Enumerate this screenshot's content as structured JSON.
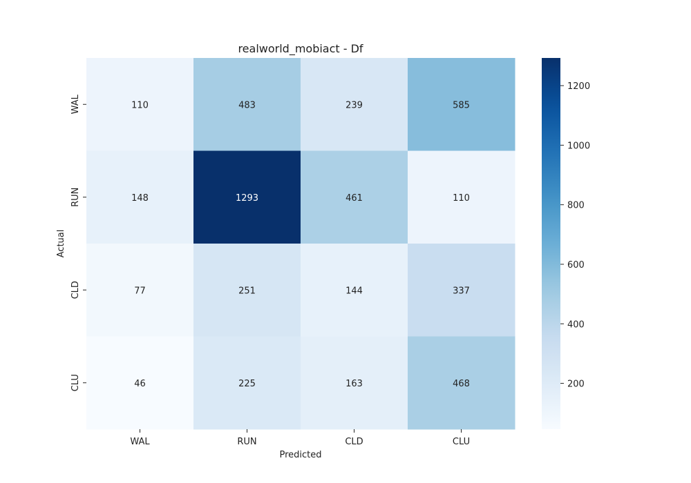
{
  "chart_data": {
    "type": "heatmap",
    "title": "realworld_mobiact - Df",
    "xlabel": "Predicted",
    "ylabel": "Actual",
    "x_categories": [
      "WAL",
      "RUN",
      "CLD",
      "CLU"
    ],
    "y_categories": [
      "WAL",
      "RUN",
      "CLD",
      "CLU"
    ],
    "values": [
      [
        110,
        483,
        239,
        585
      ],
      [
        148,
        1293,
        461,
        110
      ],
      [
        77,
        251,
        144,
        337
      ],
      [
        46,
        225,
        163,
        468
      ]
    ],
    "colormap": "Blues",
    "vmin": 46,
    "vmax": 1293,
    "colorbar_ticks": [
      200,
      400,
      600,
      800,
      1000,
      1200
    ],
    "colorbar_tick_labels": [
      "200",
      "400",
      "600",
      "800",
      "1000",
      "1200"
    ]
  }
}
